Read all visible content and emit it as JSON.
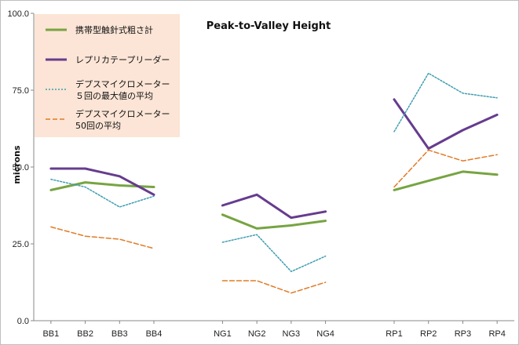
{
  "chart_data": {
    "type": "line",
    "title": "Peak-to-Valley Height",
    "ylabel": "microns",
    "xlabel": "",
    "ylim": [
      0,
      100
    ],
    "y_ticks": [
      "0.0",
      "25.0",
      "50.0",
      "75.0",
      "100.0"
    ],
    "grid": false,
    "legend_position": "top-left",
    "groups": [
      [
        "BB1",
        "BB2",
        "BB3",
        "BB4"
      ],
      [
        "NG1",
        "NG2",
        "NG3",
        "NG4"
      ],
      [
        "RP1",
        "RP2",
        "RP3",
        "RP4"
      ]
    ],
    "categories": [
      "BB1",
      "BB2",
      "BB3",
      "BB4",
      "NG1",
      "NG2",
      "NG3",
      "NG4",
      "RP1",
      "RP2",
      "RP3",
      "RP4"
    ],
    "series": [
      {
        "name": "携帯型触針式粗さ計",
        "color": "#77a442",
        "style": "solid",
        "values": [
          42.5,
          45,
          44,
          43.5,
          34.5,
          30,
          31,
          32.5,
          42.5,
          45.5,
          48.5,
          47.5
        ]
      },
      {
        "name": "レプリカテープリーダー",
        "color": "#663c8e",
        "style": "solid",
        "values": [
          49.5,
          49.5,
          47,
          41,
          37.5,
          41,
          33.5,
          35.5,
          72,
          56,
          62,
          67
        ]
      },
      {
        "name": "デプスマイクロメーター\n５回の最大値の平均",
        "color": "#3e9db1",
        "style": "dotted",
        "values": [
          46,
          43.5,
          37,
          40.5,
          25.5,
          28,
          16,
          21,
          61.5,
          80.5,
          74,
          72.5
        ]
      },
      {
        "name": "デプスマイクロメーター\n50回の平均",
        "color": "#e07b27",
        "style": "dashed",
        "values": [
          30.5,
          27.5,
          26.5,
          23.5,
          13,
          13,
          9,
          12.5,
          43.5,
          55.5,
          52,
          54
        ]
      }
    ]
  }
}
